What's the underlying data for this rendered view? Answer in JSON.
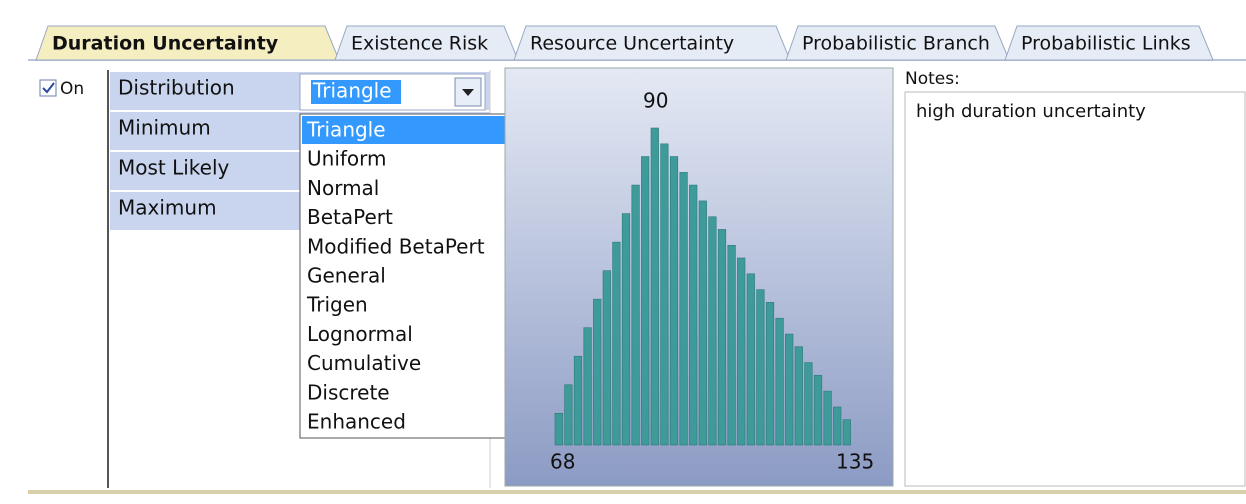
{
  "tabs": [
    "Duration Uncertainty",
    "Existence Risk",
    "Resource Uncertainty",
    "Probabilistic Branch",
    "Probabilistic Links"
  ],
  "checkbox": {
    "label": "On",
    "checked": true
  },
  "properties": [
    "Distribution",
    "Minimum",
    "Most Likely",
    "Maximum"
  ],
  "distribution_value": "Triangle",
  "dropdown_items": [
    "Triangle",
    "Uniform",
    "Normal",
    "BetaPert",
    "Modified BetaPert",
    "General",
    "Trigen",
    "Lognormal",
    "Cumulative",
    "Discrete",
    "Enhanced"
  ],
  "histogram": {
    "min_label": 68,
    "mode_label": 90,
    "max_label": 135,
    "values": [
      10,
      19,
      28,
      37,
      46,
      55,
      64,
      73,
      82,
      91,
      100,
      95,
      91,
      86,
      82,
      77,
      72,
      68,
      63,
      59,
      54,
      49,
      45,
      40,
      35,
      31,
      26,
      22,
      17,
      12,
      8
    ]
  },
  "notes": {
    "label": "Notes:",
    "text": "high duration uncertainty"
  }
}
